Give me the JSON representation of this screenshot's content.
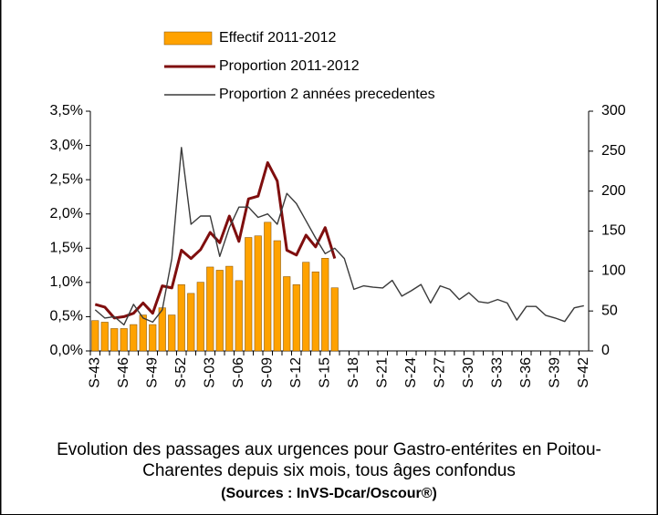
{
  "chart_data": {
    "type": "bar-line",
    "caption": "Evolution des passages aux urgences pour Gastro-entérites en Poitou-Charentes depuis six mois, tous âges confondus",
    "source": "(Sources : InVS-Dcar/Oscour®)",
    "categories": [
      "S-43",
      null,
      null,
      "S-46",
      null,
      null,
      "S-49",
      null,
      null,
      "S-52",
      null,
      null,
      "S-03",
      null,
      null,
      "S-06",
      null,
      null,
      "S-09",
      null,
      null,
      "S-12",
      null,
      null,
      "S-15",
      null,
      null,
      "S-18",
      null,
      null,
      "S-21",
      null,
      null,
      "S-24",
      null,
      null,
      "S-27",
      null,
      null,
      "S-30",
      null,
      null,
      "S-33",
      null,
      null,
      "S-36",
      null,
      null,
      "S-39",
      null,
      null,
      "S-42"
    ],
    "series": [
      {
        "name": "Effectif 2011-2012",
        "type": "bar",
        "axis": "y2",
        "color": "#ffa200",
        "values": [
          38,
          36,
          28,
          28,
          33,
          45,
          33,
          54,
          45,
          83,
          72,
          86,
          105,
          101,
          106,
          88,
          142,
          144,
          161,
          138,
          93,
          83,
          111,
          99,
          116,
          79,
          null,
          null,
          null,
          null,
          null,
          null,
          null,
          null,
          null,
          null,
          null,
          null,
          null,
          null,
          null,
          null,
          null,
          null,
          null,
          null,
          null,
          null,
          null,
          null,
          null,
          null
        ]
      },
      {
        "name": "Proportion 2011-2012",
        "type": "line",
        "color": "#7f0e0e",
        "values": [
          0.68,
          0.64,
          0.48,
          0.5,
          0.55,
          0.7,
          0.55,
          0.95,
          0.92,
          1.47,
          1.35,
          1.48,
          1.73,
          1.58,
          1.97,
          1.6,
          2.22,
          2.26,
          2.75,
          2.48,
          1.47,
          1.4,
          1.69,
          1.52,
          1.8,
          1.35,
          null,
          null,
          null,
          null,
          null,
          null,
          null,
          null,
          null,
          null,
          null,
          null,
          null,
          null,
          null,
          null,
          null,
          null,
          null,
          null,
          null,
          null,
          null,
          null,
          null,
          null
        ]
      },
      {
        "name": "Proportion 2 années precedentes",
        "type": "line",
        "color": "#3a3a3a",
        "values": [
          0.6,
          0.48,
          0.5,
          0.38,
          0.68,
          0.48,
          0.42,
          0.6,
          1.35,
          2.97,
          1.85,
          1.97,
          1.97,
          1.38,
          1.8,
          2.1,
          2.1,
          1.95,
          2.0,
          1.85,
          2.3,
          2.15,
          1.9,
          1.65,
          1.42,
          1.5,
          1.35,
          0.9,
          0.95,
          0.93,
          0.92,
          1.03,
          0.8,
          0.88,
          0.97,
          0.7,
          0.95,
          0.9,
          0.75,
          0.85,
          0.72,
          0.7,
          0.75,
          0.7,
          0.45,
          0.65,
          0.65,
          0.52,
          0.48,
          0.43,
          0.63,
          0.66
        ]
      }
    ],
    "ylim": [
      0,
      3.5
    ],
    "yticks": [
      {
        "value": 0,
        "label": "0,0%"
      },
      {
        "value": 0.5,
        "label": "0,5%"
      },
      {
        "value": 1,
        "label": "1,0%"
      },
      {
        "value": 1.5,
        "label": "1,5%"
      },
      {
        "value": 2,
        "label": "2,0%"
      },
      {
        "value": 2.5,
        "label": "2,5%"
      },
      {
        "value": 3,
        "label": "3,0%"
      },
      {
        "value": 3.5,
        "label": "3,5%"
      }
    ],
    "y2lim": [
      0,
      300
    ],
    "y2ticks": [
      0,
      50,
      100,
      150,
      200,
      250,
      300
    ],
    "grid": false
  }
}
